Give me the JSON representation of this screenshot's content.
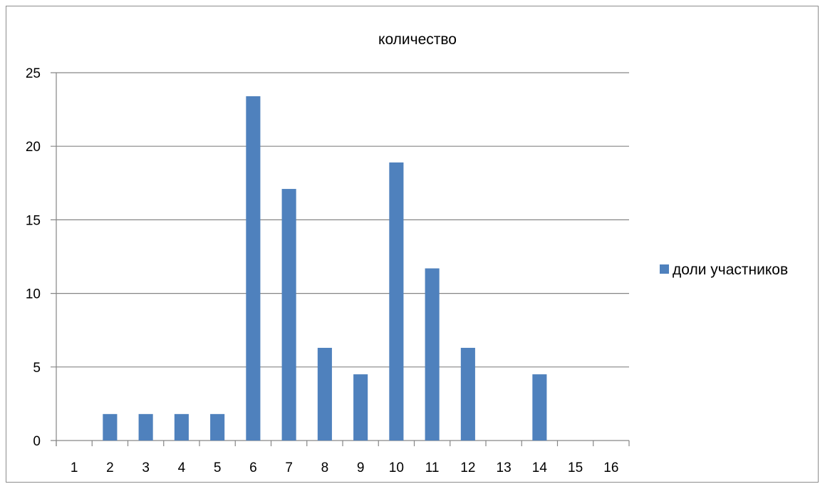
{
  "chart_data": {
    "type": "bar",
    "title": "количество",
    "xlabel": "",
    "ylabel": "",
    "categories": [
      "1",
      "2",
      "3",
      "4",
      "5",
      "6",
      "7",
      "8",
      "9",
      "10",
      "11",
      "12",
      "13",
      "14",
      "15",
      "16"
    ],
    "series": [
      {
        "name": "доли участников",
        "values": [
          0,
          1.8,
          1.8,
          1.8,
          1.8,
          23.4,
          17.1,
          6.3,
          4.5,
          18.9,
          11.7,
          6.3,
          0,
          4.5,
          0,
          0
        ],
        "color": "#4f81bd"
      }
    ],
    "ylim": [
      0,
      25
    ],
    "yticks": [
      0,
      5,
      10,
      15,
      20,
      25
    ],
    "grid": true,
    "legend_position": "right",
    "colors": {
      "grid": "#868686",
      "axis": "#868686",
      "bar": "#4f81bd"
    }
  }
}
